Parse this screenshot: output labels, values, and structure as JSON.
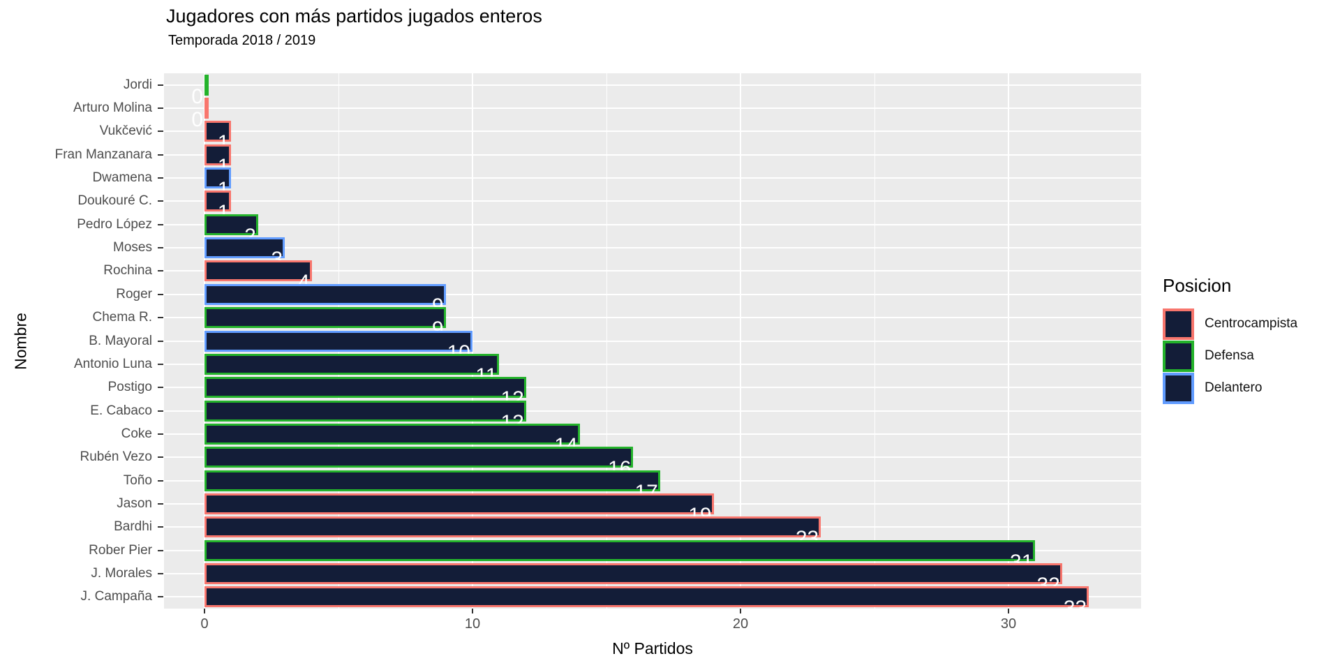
{
  "title": "Jugadores con más partidos jugados enteros",
  "subtitle": "Temporada 2018 / 2019",
  "axes": {
    "xlabel": "Nº Partidos",
    "ylabel": "Nombre",
    "x_tick_labels": [
      "0",
      "10",
      "20",
      "30"
    ]
  },
  "legend": {
    "title": "Posicion",
    "items": [
      {
        "label": "Centrocampista",
        "color": "#F8766D"
      },
      {
        "label": "Defensa",
        "color": "#24B32B"
      },
      {
        "label": "Delantero",
        "color": "#619CFF"
      }
    ]
  },
  "colors": {
    "bar_fill": "#131D38",
    "panel_background": "#EBEBEB",
    "gridline": "#FFFFFF",
    "axis_text": "#4D4D4D",
    "tick_mark": "#333333",
    "value_label": "#FFFFFF",
    "centrocampista_outline": "#F8766D",
    "defensa_outline": "#24B32B",
    "delantero_outline": "#619CFF"
  },
  "chart_data": {
    "type": "bar",
    "orientation": "horizontal",
    "title": "Jugadores con más partidos jugados enteros",
    "subtitle": "Temporada 2018 / 2019",
    "xlabel": "Nº Partidos",
    "ylabel": "Nombre",
    "xlim": [
      0,
      35
    ],
    "x_ticks": [
      0,
      10,
      20,
      30
    ],
    "x_minor_ticks": [
      5,
      15,
      25
    ],
    "grid": "white major and minor verticals, white horizontal per category, on grey panel",
    "legend_position": "right",
    "legend_title": "Posicion",
    "series_colors": {
      "Centrocampista": "#F8766D",
      "Defensa": "#24B32B",
      "Delantero": "#619CFF"
    },
    "bar_fill": "#131D38",
    "players": [
      {
        "name": "Jordi",
        "value": 0,
        "position": "Defensa"
      },
      {
        "name": "Arturo Molina",
        "value": 0,
        "position": "Centrocampista"
      },
      {
        "name": "Vukčević",
        "value": 1,
        "position": "Centrocampista"
      },
      {
        "name": "Fran Manzanara",
        "value": 1,
        "position": "Centrocampista"
      },
      {
        "name": "Dwamena",
        "value": 1,
        "position": "Delantero"
      },
      {
        "name": "Doukouré C.",
        "value": 1,
        "position": "Centrocampista"
      },
      {
        "name": "Pedro López",
        "value": 2,
        "position": "Defensa"
      },
      {
        "name": "Moses",
        "value": 3,
        "position": "Delantero"
      },
      {
        "name": "Rochina",
        "value": 4,
        "position": "Centrocampista"
      },
      {
        "name": "Roger",
        "value": 9,
        "position": "Delantero"
      },
      {
        "name": "Chema R.",
        "value": 9,
        "position": "Defensa"
      },
      {
        "name": "B. Mayoral",
        "value": 10,
        "position": "Delantero"
      },
      {
        "name": "Antonio Luna",
        "value": 11,
        "position": "Defensa"
      },
      {
        "name": "Postigo",
        "value": 12,
        "position": "Defensa"
      },
      {
        "name": "E. Cabaco",
        "value": 12,
        "position": "Defensa"
      },
      {
        "name": "Coke",
        "value": 14,
        "position": "Defensa"
      },
      {
        "name": "Rubén Vezo",
        "value": 16,
        "position": "Defensa"
      },
      {
        "name": "Toño",
        "value": 17,
        "position": "Defensa"
      },
      {
        "name": "Jason",
        "value": 19,
        "position": "Centrocampista"
      },
      {
        "name": "Bardhi",
        "value": 23,
        "position": "Centrocampista"
      },
      {
        "name": "Rober Pier",
        "value": 31,
        "position": "Defensa"
      },
      {
        "name": "J. Morales",
        "value": 32,
        "position": "Centrocampista"
      },
      {
        "name": "J. Campaña",
        "value": 33,
        "position": "Centrocampista"
      }
    ]
  }
}
